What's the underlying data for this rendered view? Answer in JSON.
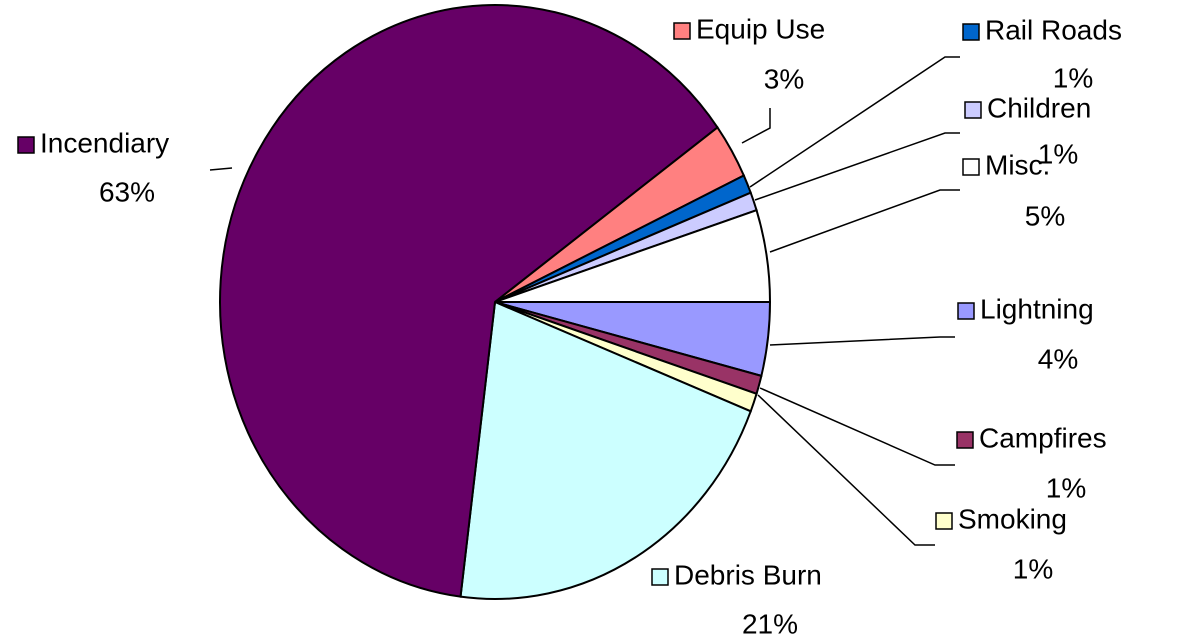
{
  "chart_data": {
    "type": "pie",
    "categories": [
      "Lightning",
      "Campfires",
      "Smoking",
      "Debris Burn",
      "Incendiary",
      "Equip Use",
      "Rail Roads",
      "Children",
      "Misc."
    ],
    "values": [
      4,
      1,
      1,
      21,
      63,
      3,
      1,
      1,
      5
    ],
    "value_labels": [
      "4%",
      "1%",
      "1%",
      "21%",
      "63%",
      "3%",
      "1%",
      "1%",
      "5%"
    ],
    "colors": [
      "#9999ff",
      "#993366",
      "#ffffcc",
      "#ccffff",
      "#660066",
      "#ff8080",
      "#0066cc",
      "#ccccff",
      "#ffffff"
    ]
  }
}
